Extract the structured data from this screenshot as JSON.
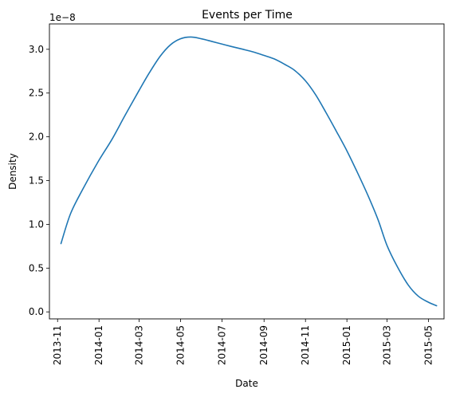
{
  "chart_data": {
    "type": "line",
    "title": "Events per Time",
    "xlabel": "Date",
    "ylabel": "Density",
    "y_offset_label": "1e−8",
    "series_color": "#1f77b4",
    "xlim": [
      "2013-10-20",
      "2015-05-24"
    ],
    "ylim": [
      -0.08,
      3.29
    ],
    "y_unit": "1e-8",
    "grid": false,
    "x_ticks": [
      "2013-11",
      "2014-01",
      "2014-03",
      "2014-05",
      "2014-07",
      "2014-09",
      "2014-11",
      "2015-01",
      "2015-03",
      "2015-05"
    ],
    "y_ticks": [
      "0.0",
      "0.5",
      "1.0",
      "1.5",
      "2.0",
      "2.5",
      "3.0"
    ],
    "y_tick_values": [
      0,
      0.5,
      1.0,
      1.5,
      2.0,
      2.5,
      3.0
    ],
    "series": [
      {
        "x": [
          "2013-11-06",
          "2013-11-20",
          "2013-12-08",
          "2013-12-31",
          "2014-01-20",
          "2014-02-08",
          "2014-03-01",
          "2014-03-16",
          "2014-04-01",
          "2014-04-16",
          "2014-05-01",
          "2014-05-16",
          "2014-06-01",
          "2014-06-16",
          "2014-07-01",
          "2014-07-16",
          "2014-08-01",
          "2014-08-16",
          "2014-09-01",
          "2014-09-16",
          "2014-10-01",
          "2014-10-16",
          "2014-11-01",
          "2014-11-16",
          "2014-12-01",
          "2014-12-16",
          "2015-01-01",
          "2015-01-16",
          "2015-02-01",
          "2015-02-16",
          "2015-03-01",
          "2015-03-16",
          "2015-04-01",
          "2015-04-16",
          "2015-05-01",
          "2015-05-13"
        ],
        "y": [
          0.78,
          1.12,
          1.4,
          1.72,
          1.97,
          2.24,
          2.53,
          2.73,
          2.92,
          3.05,
          3.12,
          3.14,
          3.12,
          3.09,
          3.06,
          3.03,
          3.0,
          2.97,
          2.93,
          2.89,
          2.83,
          2.76,
          2.64,
          2.48,
          2.28,
          2.07,
          1.84,
          1.6,
          1.33,
          1.05,
          0.76,
          0.52,
          0.31,
          0.18,
          0.11,
          0.07
        ]
      }
    ]
  }
}
